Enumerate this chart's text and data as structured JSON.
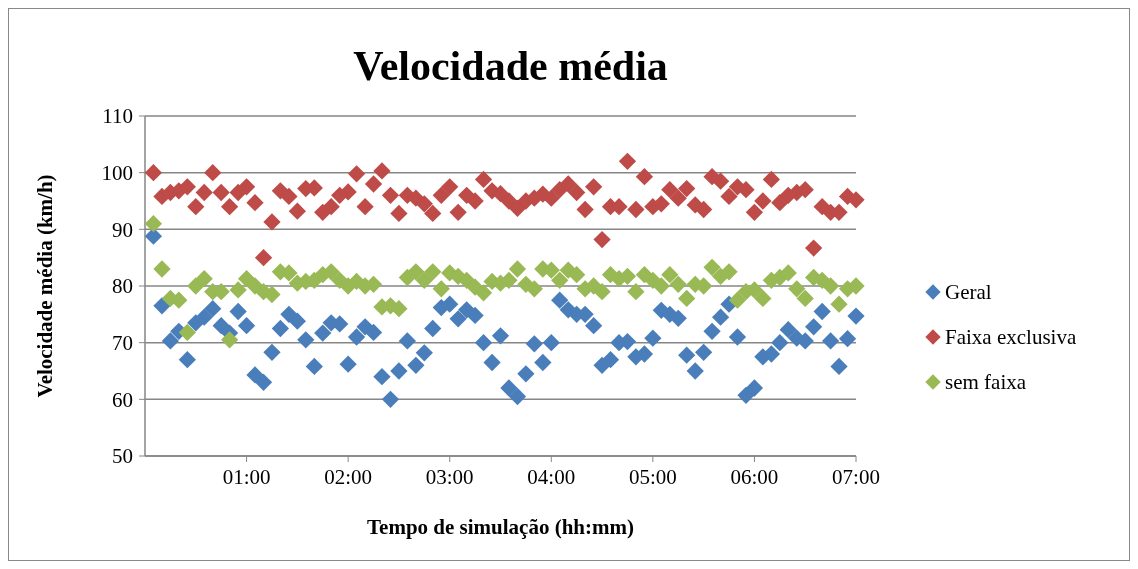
{
  "chart_data": {
    "type": "scatter",
    "title": "Velocidade média",
    "xlabel": "Tempo de simulação (hh:mm)",
    "ylabel": "Velocidade média (km/h)",
    "x": [
      0.083,
      0.167,
      0.25,
      0.333,
      0.417,
      0.5,
      0.583,
      0.667,
      0.75,
      0.833,
      0.917,
      1,
      1.083,
      1.167,
      1.25,
      1.333,
      1.417,
      1.5,
      1.583,
      1.667,
      1.75,
      1.833,
      1.917,
      2,
      2.083,
      2.167,
      2.25,
      2.333,
      2.417,
      2.5,
      2.583,
      2.667,
      2.75,
      2.833,
      2.917,
      3,
      3.083,
      3.167,
      3.25,
      3.333,
      3.417,
      3.5,
      3.583,
      3.667,
      3.75,
      3.833,
      3.917,
      4,
      4.083,
      4.167,
      4.25,
      4.333,
      4.417,
      4.5,
      4.583,
      4.667,
      4.75,
      4.833,
      4.917,
      5,
      5.083,
      5.167,
      5.25,
      5.333,
      5.417,
      5.5,
      5.583,
      5.667,
      5.75,
      5.833,
      5.917,
      6,
      6.083,
      6.167,
      6.25,
      6.333,
      6.417,
      6.5,
      6.583,
      6.667,
      6.75,
      6.833,
      6.917,
      7
    ],
    "series": [
      {
        "name": "Geral",
        "color": "#4a7ebb",
        "values": [
          88.8,
          76.5,
          70.3,
          72,
          67,
          73.5,
          74.5,
          76,
          73,
          71.7,
          75.5,
          73,
          64.3,
          63,
          68.3,
          72.5,
          75,
          73.8,
          70.5,
          65.8,
          71.7,
          73.5,
          73.3,
          66.2,
          71,
          72.8,
          71.8,
          64,
          60,
          65,
          70.3,
          66,
          68.2,
          72.5,
          76.2,
          76.8,
          74.2,
          75.8,
          74.8,
          70,
          66.5,
          71.2,
          62,
          60.5,
          64.5,
          69.8,
          66.5,
          70,
          77.5,
          75.8,
          75,
          75,
          73,
          66,
          67,
          70,
          70.2,
          67.5,
          68,
          70.8,
          75.7,
          75,
          74.3,
          67.8,
          65,
          68.3,
          72,
          74.5,
          76.8,
          71,
          60.7,
          62,
          67.5,
          68,
          70,
          72.3,
          70.8,
          70.3,
          72.8,
          75.5,
          70.3,
          65.8,
          70.7,
          74.7
        ]
      },
      {
        "name": "Faixa exclusiva",
        "color": "#be4b48",
        "values": [
          100,
          95.8,
          96.5,
          96.8,
          97.5,
          94,
          96.5,
          100,
          96.5,
          94,
          96.5,
          97.5,
          94.7,
          85,
          91.3,
          96.8,
          95.8,
          93.2,
          97.2,
          97.3,
          93,
          94,
          96,
          96.6,
          99.8,
          94,
          98,
          100.3,
          96,
          92.8,
          96,
          95.5,
          94.5,
          92.8,
          96,
          97.5,
          93,
          96,
          95,
          98.8,
          96.8,
          96.3,
          95,
          93.7,
          95,
          95.5,
          96.2,
          95.5,
          97,
          98,
          96.5,
          93.5,
          97.5,
          88.2,
          94,
          94,
          102,
          93.5,
          99.3,
          94,
          94.5,
          97,
          95.5,
          97.2,
          94.3,
          93.5,
          99.3,
          98.5,
          95.8,
          97.5,
          97,
          93,
          95,
          98.8,
          94.7,
          96,
          96.5,
          97,
          86.7,
          94,
          93,
          93,
          95.8,
          95.2
        ]
      },
      {
        "name": "sem faixa",
        "color": "#98b954",
        "values": [
          91,
          83,
          77.8,
          77.5,
          71.8,
          80,
          81.3,
          79,
          79,
          70.5,
          79.3,
          81.3,
          80,
          79,
          78.5,
          82.5,
          82.3,
          80.5,
          80.8,
          81,
          82,
          82.5,
          81,
          80,
          80.8,
          80,
          80.3,
          76.3,
          76.5,
          76,
          81.5,
          82.5,
          81,
          82.5,
          79.5,
          82.3,
          81.7,
          81,
          79.8,
          78.8,
          80.8,
          80.5,
          81,
          83,
          80.3,
          79.5,
          83,
          82.8,
          81,
          82.8,
          82,
          79.5,
          80,
          79,
          82,
          81.3,
          81.7,
          79,
          82,
          81,
          80,
          82,
          80.3,
          77.8,
          80.3,
          80,
          83.3,
          81.7,
          82.5,
          77.5,
          79,
          79.3,
          77.8,
          81,
          81.5,
          82.3,
          79.5,
          77.8,
          81.5,
          81,
          80,
          76.8,
          79.5,
          80
        ]
      }
    ],
    "xlim": [
      0,
      7
    ],
    "xticks": [
      {
        "value": 1,
        "label": "01:00"
      },
      {
        "value": 2,
        "label": "02:00"
      },
      {
        "value": 3,
        "label": "03:00"
      },
      {
        "value": 4,
        "label": "04:00"
      },
      {
        "value": 5,
        "label": "05:00"
      },
      {
        "value": 6,
        "label": "06:00"
      },
      {
        "value": 7,
        "label": "07:00"
      }
    ],
    "ylim": [
      50,
      110
    ],
    "yticks": [
      50,
      60,
      70,
      80,
      90,
      100,
      110
    ],
    "grid": "y",
    "legend": "right",
    "marker": "diamond"
  }
}
